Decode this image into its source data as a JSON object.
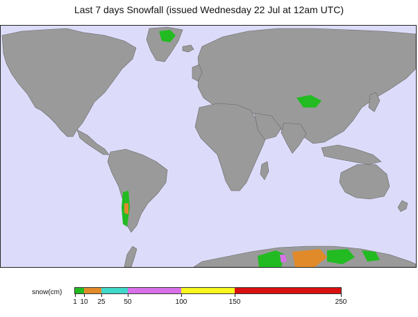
{
  "title": "Last 7 days Snowfall (issued Wednesday 22 Jul at 12am UTC)",
  "map": {
    "ocean_color": "#dcdcfa",
    "land_color": "#9a9a9a",
    "snow_colors": [
      "#22bb22",
      "#e08a2a",
      "#40d8c8",
      "#d870e8",
      "#f8f820",
      "#d81010"
    ]
  },
  "legend": {
    "label": "snow(cm)",
    "ticks": [
      "1",
      "10",
      "25",
      "50",
      "100",
      "150",
      "250"
    ],
    "segments": [
      {
        "from": "1",
        "to": "10",
        "color": "#22bb22"
      },
      {
        "from": "10",
        "to": "25",
        "color": "#e08a2a"
      },
      {
        "from": "25",
        "to": "50",
        "color": "#40d8c8"
      },
      {
        "from": "50",
        "to": "100",
        "color": "#d870e8"
      },
      {
        "from": "100",
        "to": "150",
        "color": "#f8f820"
      },
      {
        "from": "150",
        "to": "250",
        "color": "#d81010"
      }
    ]
  }
}
